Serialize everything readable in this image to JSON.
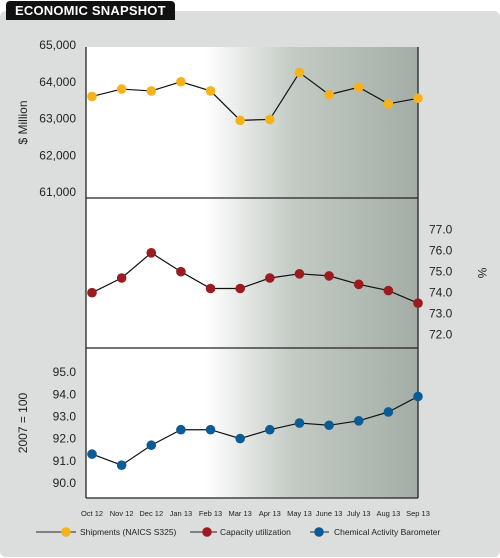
{
  "header": {
    "title": "ECONOMIC SNAPSHOT"
  },
  "chart_data": [
    {
      "type": "line",
      "categories": [
        "Oct 12",
        "Nov 12",
        "Dec 12",
        "Jan 13",
        "Feb 13",
        "Mar 13",
        "Apr 13",
        "May 13",
        "June 13",
        "July 13",
        "Aug 13",
        "Sep 13"
      ],
      "series": [
        {
          "name": "Shipments (NAICS S325)",
          "values": [
            63600,
            63800,
            63750,
            64000,
            63750,
            62950,
            62975,
            64250,
            63650,
            63850,
            63400,
            63550
          ],
          "color": "#f5b21b"
        }
      ],
      "ylabel": "$ Million",
      "ylim": [
        61000,
        65000
      ],
      "yticks": [
        "61,000",
        "62,000",
        "63,000",
        "64,000",
        "65,000"
      ],
      "yaxis_side": "left"
    },
    {
      "type": "line",
      "categories": [
        "Oct 12",
        "Nov 12",
        "Dec 12",
        "Jan 13",
        "Feb 13",
        "Mar 13",
        "Apr 13",
        "May 13",
        "June 13",
        "July 13",
        "Aug 13",
        "Sep 13"
      ],
      "series": [
        {
          "name": "Capacity utilization",
          "values": [
            74.0,
            74.7,
            75.9,
            75.0,
            74.2,
            74.2,
            74.7,
            74.9,
            74.8,
            74.4,
            74.1,
            73.5
          ],
          "color": "#9b1b1e"
        }
      ],
      "ylabel": "%",
      "ylim": [
        71.7,
        77.7
      ],
      "yticks": [
        "72.0",
        "73.0",
        "74.0",
        "75.0",
        "76.0",
        "77.0"
      ],
      "yaxis_side": "right"
    },
    {
      "type": "line",
      "categories": [
        "Oct 12",
        "Nov 12",
        "Dec 12",
        "Jan 13",
        "Feb 13",
        "Mar 13",
        "Apr 13",
        "May 13",
        "June 13",
        "July 13",
        "Aug 13",
        "Sep 13"
      ],
      "series": [
        {
          "name": "Chemical Activity Barometer",
          "values": [
            91.3,
            90.8,
            91.7,
            92.4,
            92.4,
            92.0,
            92.4,
            92.7,
            92.6,
            92.8,
            93.2,
            93.9
          ],
          "color": "#0b5b96"
        }
      ],
      "ylabel": "2007 = 100",
      "ylim": [
        89.5,
        95.5
      ],
      "yticks": [
        "90.0",
        "91.0",
        "92.0",
        "93.0",
        "94.0",
        "95.0"
      ],
      "yaxis_side": "left"
    }
  ],
  "legend": [
    {
      "label": "Shipments (NAICS S325)",
      "color": "#f5b21b"
    },
    {
      "label": "Capacity utilization",
      "color": "#9b1b1e"
    },
    {
      "label": "Chemical Activity Barometer",
      "color": "#0b5b96"
    }
  ]
}
